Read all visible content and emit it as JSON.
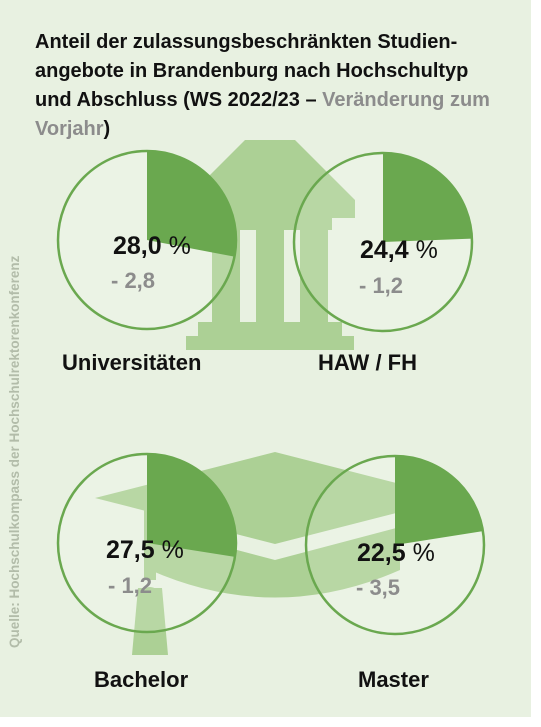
{
  "title": {
    "main": "Anteil der zulassungsbeschränkten Studien-angebote in Brandenburg nach Hochschultyp und Abschluss (WS 2022/23 – ",
    "change_word": "Veränderung zum Vorjahr",
    "close": ")"
  },
  "source": "Quelle: Hochschulkompass der Hochschulrektorenkonferenz",
  "colors": {
    "background": "#e8f1e1",
    "share_fill": "#6aa84f",
    "ring": "#6aa84f",
    "icon": "#acd095",
    "change_text": "#8c8c8c"
  },
  "icons": [
    "university-building-icon",
    "graduation-cap-icon"
  ],
  "chart_data": [
    {
      "type": "pie",
      "label": "Universitäten",
      "value": 28.0,
      "value_text": "28,0",
      "unit": "%",
      "change": -2.8,
      "change_text": "- 2,8"
    },
    {
      "type": "pie",
      "label": "HAW / FH",
      "value": 24.4,
      "value_text": "24,4",
      "unit": "%",
      "change": -1.2,
      "change_text": "- 1,2"
    },
    {
      "type": "pie",
      "label": "Bachelor",
      "value": 27.5,
      "value_text": "27,5",
      "unit": "%",
      "change": -1.2,
      "change_text": "- 1,2"
    },
    {
      "type": "pie",
      "label": "Master",
      "value": 22.5,
      "value_text": "22,5",
      "unit": "%",
      "change": -3.5,
      "change_text": "- 3,5"
    }
  ]
}
